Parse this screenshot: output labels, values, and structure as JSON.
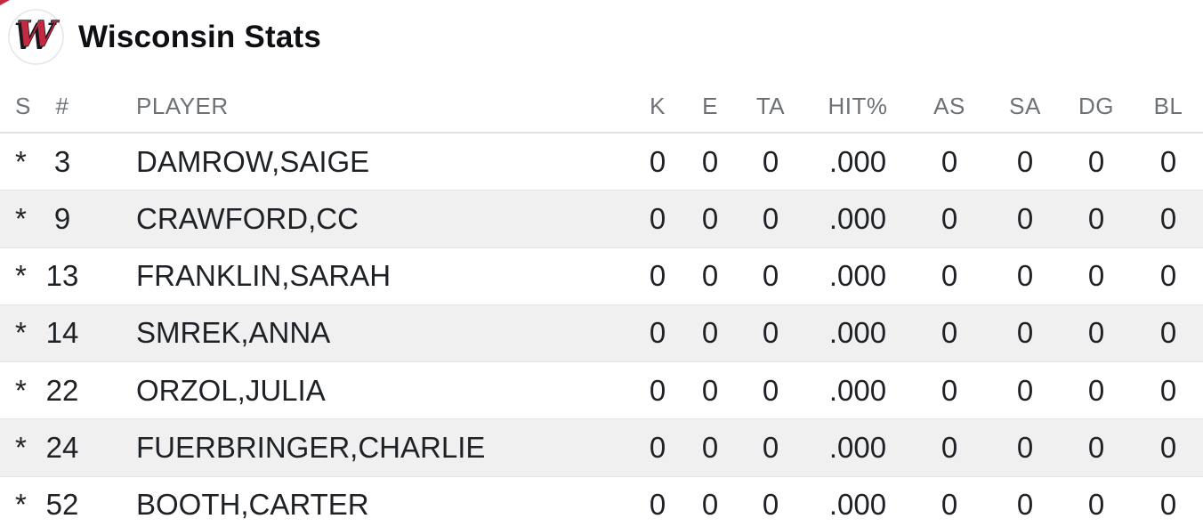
{
  "header": {
    "title": "Wisconsin Stats",
    "logo_letter": "W"
  },
  "table": {
    "columns": [
      {
        "key": "s",
        "label": "S",
        "align": "left"
      },
      {
        "key": "num",
        "label": "#",
        "align": "center"
      },
      {
        "key": "player",
        "label": "PLAYER",
        "align": "left"
      },
      {
        "key": "k",
        "label": "K",
        "align": "center"
      },
      {
        "key": "e",
        "label": "E",
        "align": "center"
      },
      {
        "key": "ta",
        "label": "TA",
        "align": "center"
      },
      {
        "key": "hit_pct",
        "label": "HIT%",
        "align": "center"
      },
      {
        "key": "as",
        "label": "AS",
        "align": "center"
      },
      {
        "key": "sa",
        "label": "SA",
        "align": "center"
      },
      {
        "key": "dg",
        "label": "DG",
        "align": "center"
      },
      {
        "key": "bl",
        "label": "BL",
        "align": "center"
      }
    ],
    "rows": [
      [
        "*",
        "3",
        "DAMROW,SAIGE",
        "0",
        "0",
        "0",
        ".000",
        "0",
        "0",
        "0",
        "0"
      ],
      [
        "*",
        "9",
        "CRAWFORD,CC",
        "0",
        "0",
        "0",
        ".000",
        "0",
        "0",
        "0",
        "0"
      ],
      [
        "*",
        "13",
        "FRANKLIN,SARAH",
        "0",
        "0",
        "0",
        ".000",
        "0",
        "0",
        "0",
        "0"
      ],
      [
        "*",
        "14",
        "SMREK,ANNA",
        "0",
        "0",
        "0",
        ".000",
        "0",
        "0",
        "0",
        "0"
      ],
      [
        "*",
        "22",
        "ORZOL,JULIA",
        "0",
        "0",
        "0",
        ".000",
        "0",
        "0",
        "0",
        "0"
      ],
      [
        "*",
        "24",
        "FUERBRINGER,CHARLIE",
        "0",
        "0",
        "0",
        ".000",
        "0",
        "0",
        "0",
        "0"
      ],
      [
        "*",
        "52",
        "BOOTH,CARTER",
        "0",
        "0",
        "0",
        ".000",
        "0",
        "0",
        "0",
        "0"
      ]
    ]
  },
  "colors": {
    "brand-red": "#c32a41",
    "zebra-row": "#f0f0f0",
    "row-divider": "#e4e5e7",
    "header-divider": "#e0e2e6",
    "header-text": "#6e7277",
    "cell-text": "#1e2126",
    "title-text": "#0d0f13",
    "logo-ring": "#e5e5e5"
  }
}
